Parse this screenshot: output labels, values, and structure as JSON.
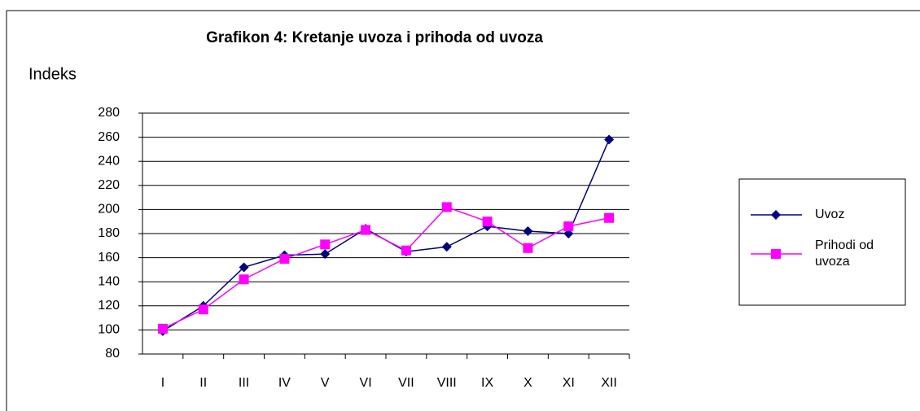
{
  "chart_data": {
    "type": "line",
    "title": "Grafikon 4: Kretanje uvoza i prihoda od uvoza",
    "y_label": "Indeks",
    "categories": [
      "I",
      "II",
      "III",
      "IV",
      "V",
      "VI",
      "VII",
      "VIII",
      "IX",
      "X",
      "XI",
      "XII"
    ],
    "series": [
      {
        "name": "Uvoz",
        "color": "#000080",
        "marker": "diamond",
        "values": [
          99,
          120,
          152,
          162,
          163,
          184,
          165,
          169,
          186,
          182,
          180,
          258
        ]
      },
      {
        "name": "Prihodi od uvoza",
        "color": "#ff00ff",
        "marker": "square",
        "values": [
          101,
          117,
          142,
          159,
          171,
          183,
          166,
          202,
          190,
          168,
          186,
          193
        ]
      }
    ],
    "ylim": [
      80,
      280
    ],
    "yticks": [
      80,
      100,
      120,
      140,
      160,
      180,
      200,
      220,
      240,
      260,
      280
    ],
    "grid": true,
    "legend": "right"
  }
}
